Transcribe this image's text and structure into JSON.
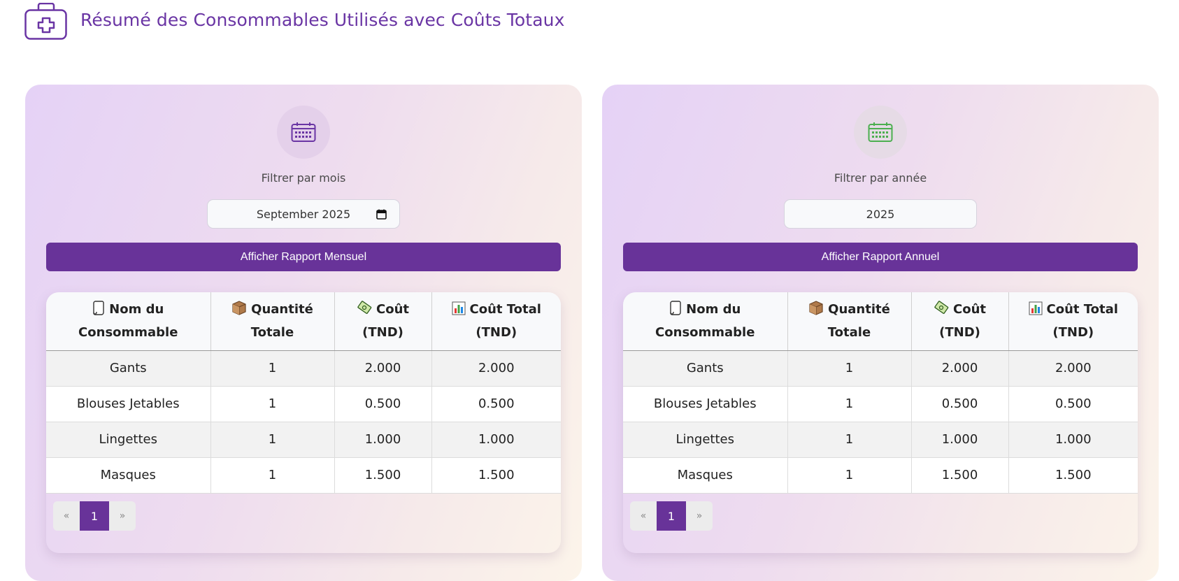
{
  "header": {
    "title": "Résumé des Consommables Utilisés avec Coûts Totaux",
    "icon": "medical-kit-icon",
    "accent": "#683399"
  },
  "monthly": {
    "filter_label": "Filtrer par mois",
    "input_value": "September 2025",
    "button_label": "Afficher Rapport Mensuel",
    "calendar_color": "#6a35a4",
    "columns": [
      "Nom du Consommable",
      "Quantité Totale",
      "Coût (TND)",
      "Coût Total (TND)"
    ],
    "rows": [
      {
        "name": "Gants",
        "qty": "1",
        "cost": "2.000",
        "total": "2.000"
      },
      {
        "name": "Blouses Jetables",
        "qty": "1",
        "cost": "0.500",
        "total": "0.500"
      },
      {
        "name": "Lingettes",
        "qty": "1",
        "cost": "1.000",
        "total": "1.000"
      },
      {
        "name": "Masques",
        "qty": "1",
        "cost": "1.500",
        "total": "1.500"
      }
    ],
    "pagination": {
      "prev": "«",
      "current": "1",
      "next": "»"
    }
  },
  "annual": {
    "filter_label": "Filtrer par année",
    "input_value": "2025",
    "button_label": "Afficher Rapport Annuel",
    "calendar_color": "#4caf50",
    "columns": [
      "Nom du Consommable",
      "Quantité Totale",
      "Coût (TND)",
      "Coût Total (TND)"
    ],
    "rows": [
      {
        "name": "Gants",
        "qty": "1",
        "cost": "2.000",
        "total": "2.000"
      },
      {
        "name": "Blouses Jetables",
        "qty": "1",
        "cost": "0.500",
        "total": "0.500"
      },
      {
        "name": "Lingettes",
        "qty": "1",
        "cost": "1.000",
        "total": "1.000"
      },
      {
        "name": "Masques",
        "qty": "1",
        "cost": "1.500",
        "total": "1.500"
      }
    ],
    "pagination": {
      "prev": "«",
      "current": "1",
      "next": "»"
    }
  }
}
